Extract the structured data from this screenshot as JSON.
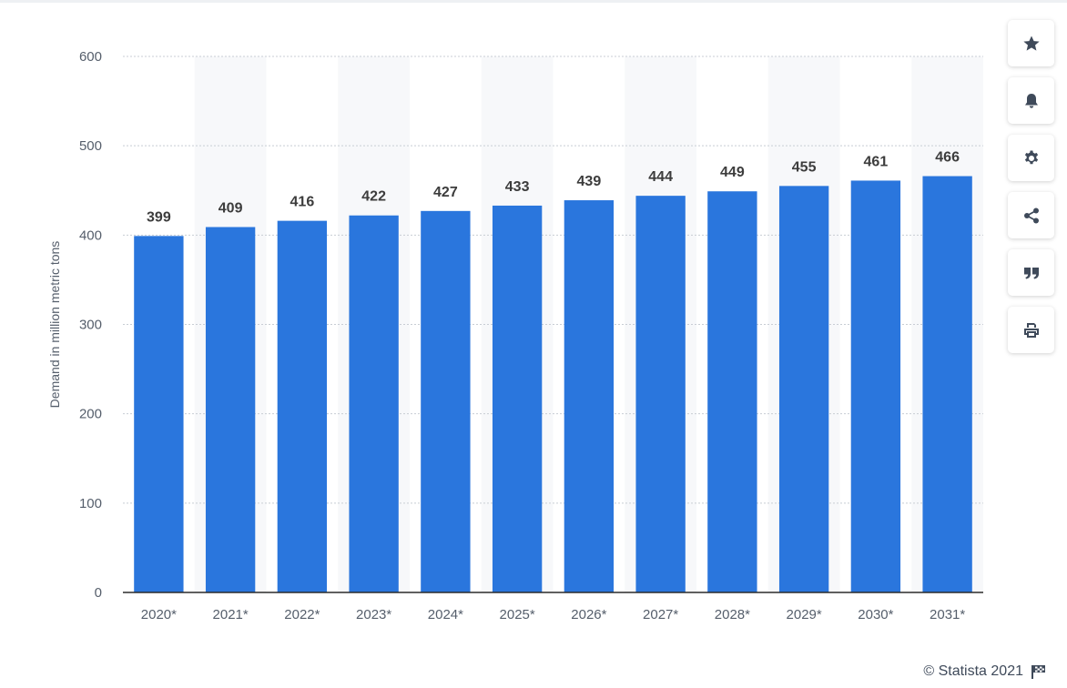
{
  "chart_data": {
    "type": "bar",
    "categories": [
      "2020*",
      "2021*",
      "2022*",
      "2023*",
      "2024*",
      "2025*",
      "2026*",
      "2027*",
      "2028*",
      "2029*",
      "2030*",
      "2031*"
    ],
    "values": [
      399,
      409,
      416,
      422,
      427,
      433,
      439,
      444,
      449,
      455,
      461,
      466
    ],
    "value_labels": [
      "399",
      "409",
      "416",
      "422",
      "427",
      "433",
      "439",
      "444",
      "449",
      "455",
      "461",
      "466"
    ],
    "title": "",
    "xlabel": "",
    "ylabel": "Demand in million metric tons",
    "ylim": [
      0,
      600
    ],
    "yticks": [
      0,
      100,
      200,
      300,
      400,
      500,
      600
    ],
    "ytick_labels": [
      "0",
      "100",
      "200",
      "300",
      "400",
      "500",
      "600"
    ],
    "grid": true,
    "bar_color": "#2a76dd",
    "band_color": "#f7f8fa",
    "grid_color": "#c8cdd4"
  },
  "toolbar": {
    "buttons": [
      {
        "icon": "star-icon"
      },
      {
        "icon": "bell-icon"
      },
      {
        "icon": "gear-icon"
      },
      {
        "icon": "share-icon"
      },
      {
        "icon": "quote-icon"
      },
      {
        "icon": "print-icon"
      }
    ]
  },
  "footer": {
    "copyright": "© Statista 2021",
    "flag_icon": "flag-icon"
  }
}
